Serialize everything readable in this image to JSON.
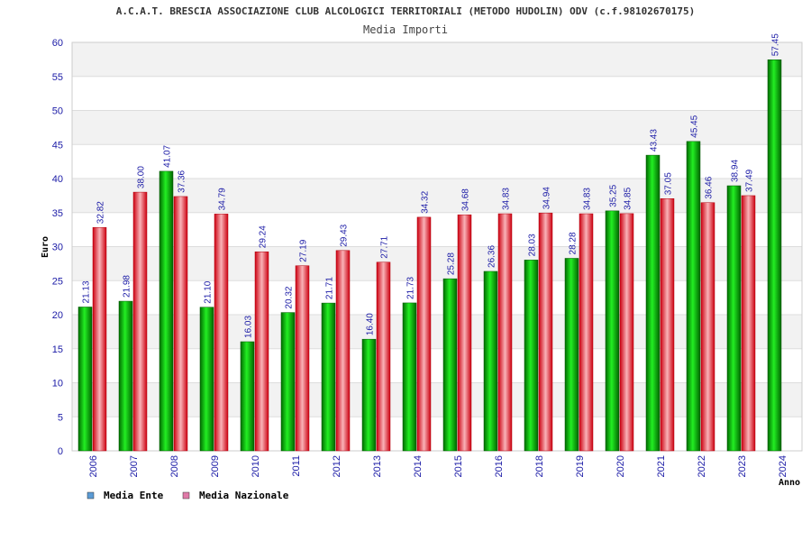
{
  "chart_data": {
    "type": "bar",
    "title": "A.C.A.T. BRESCIA ASSOCIAZIONE CLUB ALCOLOGICI TERRITORIALI (METODO HUDOLIN) ODV (c.f.98102670175)",
    "subtitle": "Media Importi",
    "xlabel": "Anno",
    "ylabel": "Euro",
    "ylim": [
      0,
      60
    ],
    "yticks": [
      0,
      5,
      10,
      15,
      20,
      25,
      30,
      35,
      40,
      45,
      50,
      55,
      60
    ],
    "grid": true,
    "legend_position": "bottom-left",
    "categories": [
      "2006",
      "2007",
      "2008",
      "2009",
      "2010",
      "2011",
      "2012",
      "2013",
      "2014",
      "2015",
      "2016",
      "2018",
      "2019",
      "2020",
      "2021",
      "2022",
      "2023",
      "2024"
    ],
    "series": [
      {
        "name": "Media Ente",
        "color": "#00aa00",
        "legend_color": "#5b9bd5",
        "values": [
          21.13,
          21.98,
          41.07,
          21.1,
          16.03,
          20.32,
          21.71,
          16.4,
          21.73,
          25.28,
          26.36,
          28.03,
          28.28,
          35.25,
          43.43,
          45.45,
          38.94,
          57.45
        ],
        "labels": [
          "21.13",
          "21.98",
          "41.07",
          "21.10",
          "16.03",
          "20.32",
          "21.71",
          "16.40",
          "21.73",
          "25.28",
          "26.36",
          "28.03",
          "28.28",
          "35.25",
          "43.43",
          "45.45",
          "38.94",
          "57.45"
        ]
      },
      {
        "name": "Media Nazionale",
        "color": "#e8101e",
        "legend_color": "#e07aa8",
        "values": [
          32.82,
          38.0,
          37.36,
          34.79,
          29.24,
          27.19,
          29.43,
          27.71,
          34.32,
          34.68,
          34.83,
          34.94,
          34.83,
          34.85,
          37.05,
          36.46,
          37.49,
          null
        ],
        "labels": [
          "32.82",
          "38.00",
          "37.36",
          "34.79",
          "29.24",
          "27.19",
          "29.43",
          "27.71",
          "34.32",
          "34.68",
          "34.83",
          "34.94",
          "34.83",
          "34.85",
          "37.05",
          "36.46",
          "37.49",
          ""
        ]
      }
    ]
  }
}
